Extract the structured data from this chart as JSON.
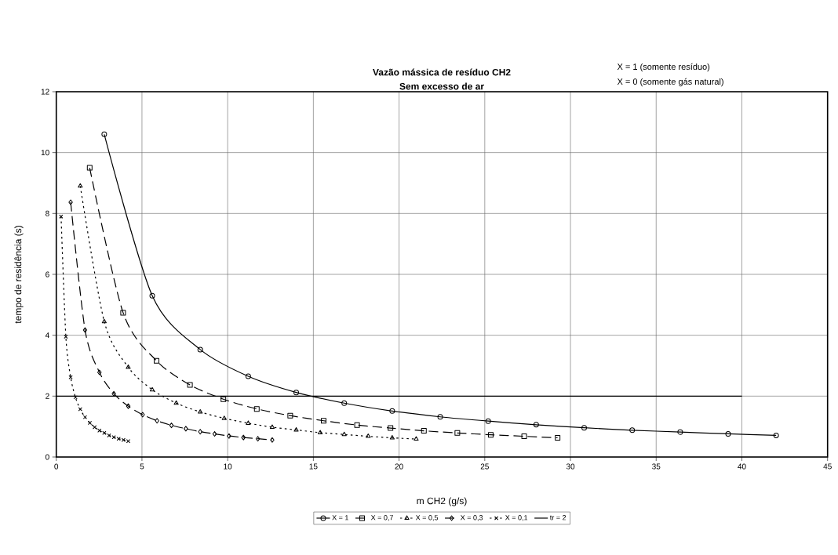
{
  "chart_data": {
    "type": "line",
    "title": "Vazão mássica de resíduo CH2",
    "subtitle": "Sem excesso de ar",
    "xlabel": "m CH2 (g/s)",
    "ylabel": "tempo de residência (s)",
    "annotations": [
      "X = 1 (somente resíduo)",
      "X = 0 (somente gás natural)"
    ],
    "xlim": [
      0,
      45
    ],
    "xticks": [
      0,
      5,
      10,
      15,
      20,
      25,
      30,
      35,
      40,
      45
    ],
    "ylim": [
      0,
      12
    ],
    "yticks": [
      0,
      2,
      4,
      6,
      8,
      10,
      12
    ],
    "grid": true,
    "legend": "bottom",
    "series": [
      {
        "name": "X = 1",
        "color": "#000000",
        "marker": "circle",
        "line_style": "solid",
        "x": [
          2.8,
          5.6,
          8.4,
          11.2,
          14,
          16.8,
          19.6,
          22.4,
          25.2,
          28,
          30.8,
          33.6,
          36.4,
          39.2,
          42
        ],
        "values": [
          10.6,
          5.3,
          3.53,
          2.65,
          2.12,
          1.77,
          1.51,
          1.32,
          1.18,
          1.06,
          0.96,
          0.88,
          0.82,
          0.76,
          0.71
        ]
      },
      {
        "name": "X = 0,7",
        "color": "#000000",
        "marker": "square",
        "line_style": "dashed",
        "x": [
          1.95,
          3.9,
          5.85,
          7.8,
          9.75,
          11.7,
          13.65,
          15.6,
          17.55,
          19.5,
          21.45,
          23.4,
          25.35,
          27.3,
          29.25
        ],
        "values": [
          9.5,
          4.74,
          3.16,
          2.37,
          1.9,
          1.58,
          1.36,
          1.19,
          1.05,
          0.95,
          0.86,
          0.79,
          0.73,
          0.68,
          0.63
        ]
      },
      {
        "name": "X = 0,5",
        "color": "#000000",
        "marker": "triangle",
        "line_style": "dotted",
        "x": [
          1.4,
          2.8,
          4.2,
          5.6,
          7,
          8.4,
          9.8,
          11.2,
          12.6,
          14,
          15.4,
          16.8,
          18.2,
          19.6,
          21
        ],
        "values": [
          8.9,
          4.45,
          2.95,
          2.21,
          1.77,
          1.48,
          1.27,
          1.11,
          0.98,
          0.89,
          0.8,
          0.74,
          0.68,
          0.63,
          0.59
        ]
      },
      {
        "name": "X = 0,3",
        "color": "#000000",
        "marker": "diamond",
        "line_style": "dashed",
        "x": [
          0.84,
          1.68,
          2.52,
          3.36,
          4.2,
          5.04,
          5.88,
          6.72,
          7.56,
          8.4,
          9.24,
          10.08,
          10.92,
          11.76,
          12.6
        ],
        "values": [
          8.37,
          4.17,
          2.78,
          2.08,
          1.67,
          1.39,
          1.19,
          1.04,
          0.93,
          0.83,
          0.76,
          0.69,
          0.64,
          0.6,
          0.56
        ]
      },
      {
        "name": "X = 0,1",
        "color": "#000000",
        "marker": "cross",
        "line_style": "dotted",
        "x": [
          0.28,
          0.56,
          0.84,
          1.12,
          1.4,
          1.68,
          1.96,
          2.24,
          2.52,
          2.8,
          3.08,
          3.36,
          3.64,
          3.92,
          4.2
        ],
        "values": [
          7.9,
          3.95,
          2.62,
          1.96,
          1.57,
          1.31,
          1.12,
          0.98,
          0.87,
          0.79,
          0.71,
          0.65,
          0.6,
          0.56,
          0.52
        ]
      },
      {
        "name": "tr = 2",
        "color": "#000000",
        "marker": "none",
        "line_style": "solid",
        "x": [
          0,
          40
        ],
        "values": [
          2,
          2
        ]
      }
    ]
  }
}
